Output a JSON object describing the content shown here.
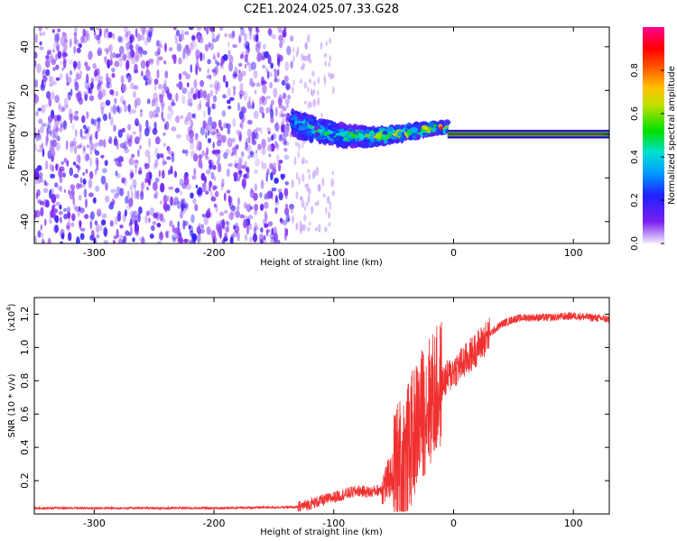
{
  "title": "C2E1.2024.025.07.33.G28",
  "chart_data": [
    {
      "type": "heatmap",
      "xlabel": "Height of straight line (km)",
      "ylabel": "Frequency (Hz)",
      "xlim": [
        -350,
        130
      ],
      "ylim": [
        -50,
        49
      ],
      "xticks": [
        -300,
        -200,
        -100,
        0,
        100
      ],
      "yticks": [
        -40,
        -20,
        0,
        20,
        40
      ],
      "colorbar": {
        "label": "Normalized spectral amplitude",
        "range": [
          0.0,
          1.0
        ],
        "ticks": [
          "0.0",
          "0.2",
          "0.4",
          "0.6",
          "0.8"
        ],
        "colors": [
          "#e8e0f8",
          "#5a00e8",
          "#0060ff",
          "#00e0e0",
          "#00e000",
          "#e0e000",
          "#ff8000",
          "#ff0000",
          "#ff0080"
        ]
      },
      "regions": [
        {
          "x_range": [
            -350,
            -135
          ],
          "freq_spread_hz": 50,
          "amplitude": [
            0.05,
            0.2
          ]
        },
        {
          "x_range": [
            -135,
            -5
          ],
          "freq_center_hz": [
            5,
            0
          ],
          "freq_spread_hz": 6,
          "amplitude": [
            0.1,
            0.9
          ]
        },
        {
          "x_range": [
            -5,
            130
          ],
          "freq_center_hz": 0,
          "freq_spread_hz": 1.5,
          "amplitude": [
            0.8,
            1.0
          ]
        }
      ]
    },
    {
      "type": "line",
      "xlabel": "Height of straight line (km)",
      "ylabel": "SNR (10 * v/v)",
      "y_multiplier": "(x10",
      "y_multiplier_exp": "4",
      "y_multiplier_close": ")",
      "xlim": [
        -350,
        130
      ],
      "ylim": [
        0,
        1.3
      ],
      "xticks": [
        -300,
        -200,
        -100,
        0,
        100
      ],
      "yticks": [
        "0.2",
        "0.4",
        "0.6",
        "0.8",
        "1.0",
        "1.2"
      ],
      "color": "#f03030",
      "series": [
        {
          "x": [
            -350,
            -300,
            -250,
            -200,
            -150,
            -130,
            -120,
            -110,
            -100,
            -90,
            -80,
            -70,
            -60,
            -55,
            -50,
            -45,
            -40,
            -35,
            -30,
            -25,
            -20,
            -15,
            -10,
            -5,
            0,
            10,
            20,
            30,
            40,
            50,
            60,
            80,
            100,
            130
          ],
          "y": [
            0.035,
            0.035,
            0.035,
            0.035,
            0.04,
            0.04,
            0.06,
            0.08,
            0.1,
            0.12,
            0.14,
            0.13,
            0.15,
            0.2,
            0.25,
            0.3,
            0.35,
            0.45,
            0.55,
            0.62,
            0.68,
            0.72,
            0.78,
            0.82,
            0.86,
            0.92,
            1.0,
            1.08,
            1.14,
            1.17,
            1.18,
            1.18,
            1.19,
            1.17
          ]
        }
      ]
    }
  ]
}
